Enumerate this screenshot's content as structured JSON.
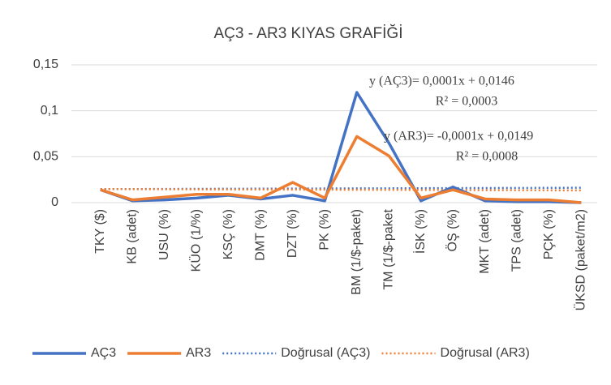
{
  "chart_data": {
    "type": "line",
    "title": "AÇ3 - AR3 KIYAS GRAFİĞİ",
    "categories": [
      "TKY ($)",
      "KB (adet)",
      "USU (%)",
      "KÜO (1/%)",
      "KSÇ (%)",
      "DMT (%)",
      "DZT (%)",
      "PK (%)",
      "BM (1/$-paket)",
      "TM (1/$-paket",
      "İSK (%)",
      "ÖŞ (%)",
      "MKT (adet)",
      "TPS (adet)",
      "PÇK (%)",
      "ÜKSD (paket/m2)"
    ],
    "series": [
      {
        "name": "AÇ3",
        "color": "#4472c4",
        "dash": false,
        "values": [
          0.014,
          0.002,
          0.003,
          0.005,
          0.008,
          0.004,
          0.008,
          0.002,
          0.12,
          0.065,
          0.002,
          0.017,
          0.002,
          0.001,
          0.001,
          0.0
        ]
      },
      {
        "name": "AR3",
        "color": "#ed7d31",
        "dash": false,
        "values": [
          0.014,
          0.003,
          0.006,
          0.009,
          0.009,
          0.005,
          0.022,
          0.005,
          0.072,
          0.051,
          0.005,
          0.014,
          0.004,
          0.003,
          0.003,
          0.0
        ]
      },
      {
        "name": "Doğrusal (AÇ3)",
        "color": "#4472c4",
        "dash": true,
        "values": [
          0.0147,
          0.0148,
          0.0149,
          0.015,
          0.0151,
          0.0152,
          0.0153,
          0.0154,
          0.0155,
          0.0156,
          0.0157,
          0.0158,
          0.0159,
          0.016,
          0.0161,
          0.0162
        ]
      },
      {
        "name": "Doğrusal (AR3)",
        "color": "#ed7d31",
        "dash": true,
        "values": [
          0.0148,
          0.0147,
          0.0146,
          0.0145,
          0.0144,
          0.0143,
          0.0142,
          0.0141,
          0.014,
          0.0139,
          0.0138,
          0.0137,
          0.0136,
          0.0135,
          0.0134,
          0.0133
        ]
      }
    ],
    "annotations": [
      "y  (AÇ3)= 0,0001x + 0,0146",
      "R² = 0,0003",
      "y (AR3)= -0,0001x + 0,0149",
      "R² = 0,0008"
    ],
    "ylim": [
      0,
      0.15
    ],
    "yticks": [
      0,
      {
        "value": 0.05,
        "label": "0,05"
      },
      {
        "value": 0.1,
        "label": "0,1"
      },
      {
        "value": 0.15,
        "label": "0,15"
      }
    ],
    "grid": true,
    "legend": "bottom"
  }
}
